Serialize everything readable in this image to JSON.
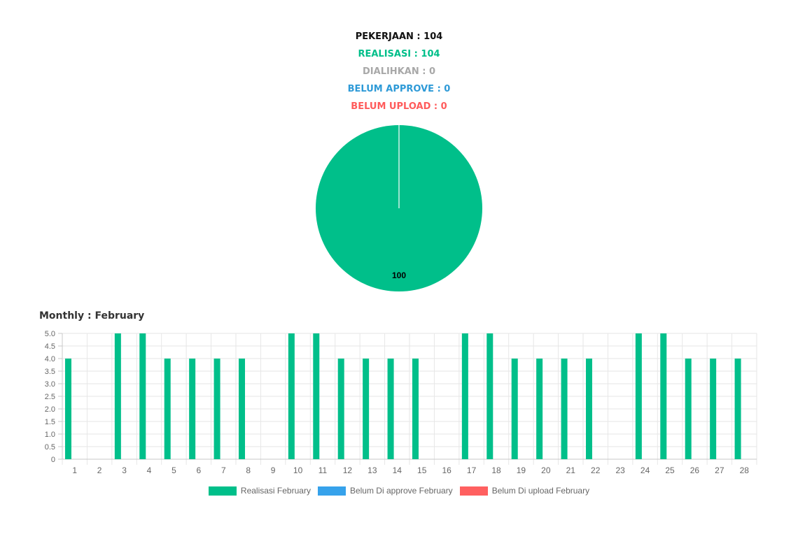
{
  "summary": {
    "pekerjaan": "PEKERJAAN : 104",
    "realisasi": "REALISASI : 104",
    "dialihkan": "DIALIHKAN : 0",
    "belum_approve": "BELUM APPROVE : 0",
    "belum_upload": "BELUM UPLOAD : 0"
  },
  "colors": {
    "realisasi": "#00bf8a",
    "dialihkan": "#a8a8a8",
    "belum_approve": "#2e9ad7",
    "belum_upload": "#ff5b5b",
    "pekerjaan": "#111111"
  },
  "monthly_title": "Monthly : February",
  "chart_data": [
    {
      "type": "pie",
      "slices": [
        {
          "value": 100,
          "color": "#00bf8a"
        },
        {
          "value": 0,
          "color": "#a8a8a8"
        },
        {
          "value": 0,
          "color": "#2e9ad7"
        },
        {
          "value": 0,
          "color": "#ff5b5b"
        }
      ],
      "data_label": "100"
    },
    {
      "type": "bar",
      "title": "Monthly : February",
      "categories": [
        "1",
        "2",
        "3",
        "4",
        "5",
        "6",
        "7",
        "8",
        "9",
        "10",
        "11",
        "12",
        "13",
        "14",
        "15",
        "16",
        "17",
        "18",
        "19",
        "20",
        "21",
        "22",
        "23",
        "24",
        "25",
        "26",
        "27",
        "28"
      ],
      "series": [
        {
          "name": "Realisasi February",
          "color": "#00bf8a",
          "values": [
            4,
            0,
            5,
            5,
            4,
            4,
            4,
            4,
            0,
            5,
            5,
            4,
            4,
            4,
            4,
            0,
            5,
            5,
            4,
            4,
            4,
            4,
            0,
            5,
            5,
            4,
            4,
            4
          ]
        },
        {
          "name": "Belum Di approve February",
          "color": "#36a2eb",
          "values": [
            0,
            0,
            0,
            0,
            0,
            0,
            0,
            0,
            0,
            0,
            0,
            0,
            0,
            0,
            0,
            0,
            0,
            0,
            0,
            0,
            0,
            0,
            0,
            0,
            0,
            0,
            0,
            0
          ]
        },
        {
          "name": "Belum Di upload February",
          "color": "#ff6060",
          "values": [
            0,
            0,
            0,
            0,
            0,
            0,
            0,
            0,
            0,
            0,
            0,
            0,
            0,
            0,
            0,
            0,
            0,
            0,
            0,
            0,
            0,
            0,
            0,
            0,
            0,
            0,
            0,
            0
          ]
        }
      ],
      "ylim": [
        0,
        5
      ],
      "yticks": [
        "0",
        "0.5",
        "1.0",
        "1.5",
        "2.0",
        "2.5",
        "3.0",
        "3.5",
        "4.0",
        "4.5",
        "5.0"
      ],
      "grid": true,
      "legend": "bottom"
    }
  ]
}
